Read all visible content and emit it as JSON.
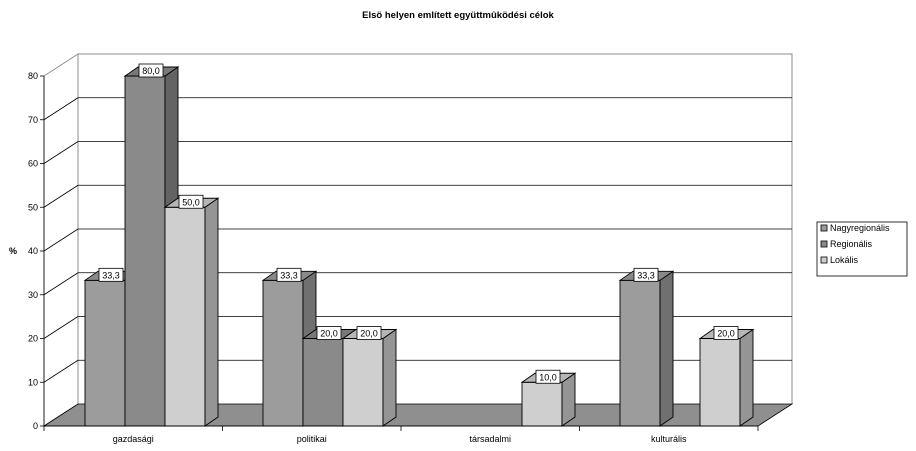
{
  "chart_data": {
    "type": "bar",
    "title": "Elsö helyen említett együttmûködési célok",
    "ylabel": "%",
    "xlabel": "",
    "ylim": [
      0,
      80
    ],
    "yticks": [
      "0",
      "10",
      "20",
      "30",
      "40",
      "50",
      "60",
      "70",
      "80"
    ],
    "categories": [
      "gazdasági",
      "politikai",
      "társadalmi",
      "kulturális"
    ],
    "series": [
      {
        "name": "Nagyregionális",
        "values": [
          33.3,
          33.3,
          null,
          33.3
        ],
        "labels": [
          "33,3",
          "33,3",
          null,
          "33,3"
        ]
      },
      {
        "name": "Regionális",
        "values": [
          80.0,
          20.0,
          null,
          null
        ],
        "labels": [
          "80,0",
          "20,0",
          null,
          null
        ]
      },
      {
        "name": "Lokális",
        "values": [
          50.0,
          20.0,
          10.0,
          20.0
        ],
        "labels": [
          "50,0",
          "20,0",
          "10,0",
          "20,0"
        ]
      }
    ],
    "grid": true,
    "legend_position": "right",
    "style": "3d-clustered-column",
    "colors": {
      "Nagyregionális": "#9c9c9c",
      "Regionális": "#8a8a8a",
      "Lokális": "#cfcfcf",
      "floor": "#8f8f8f"
    }
  }
}
